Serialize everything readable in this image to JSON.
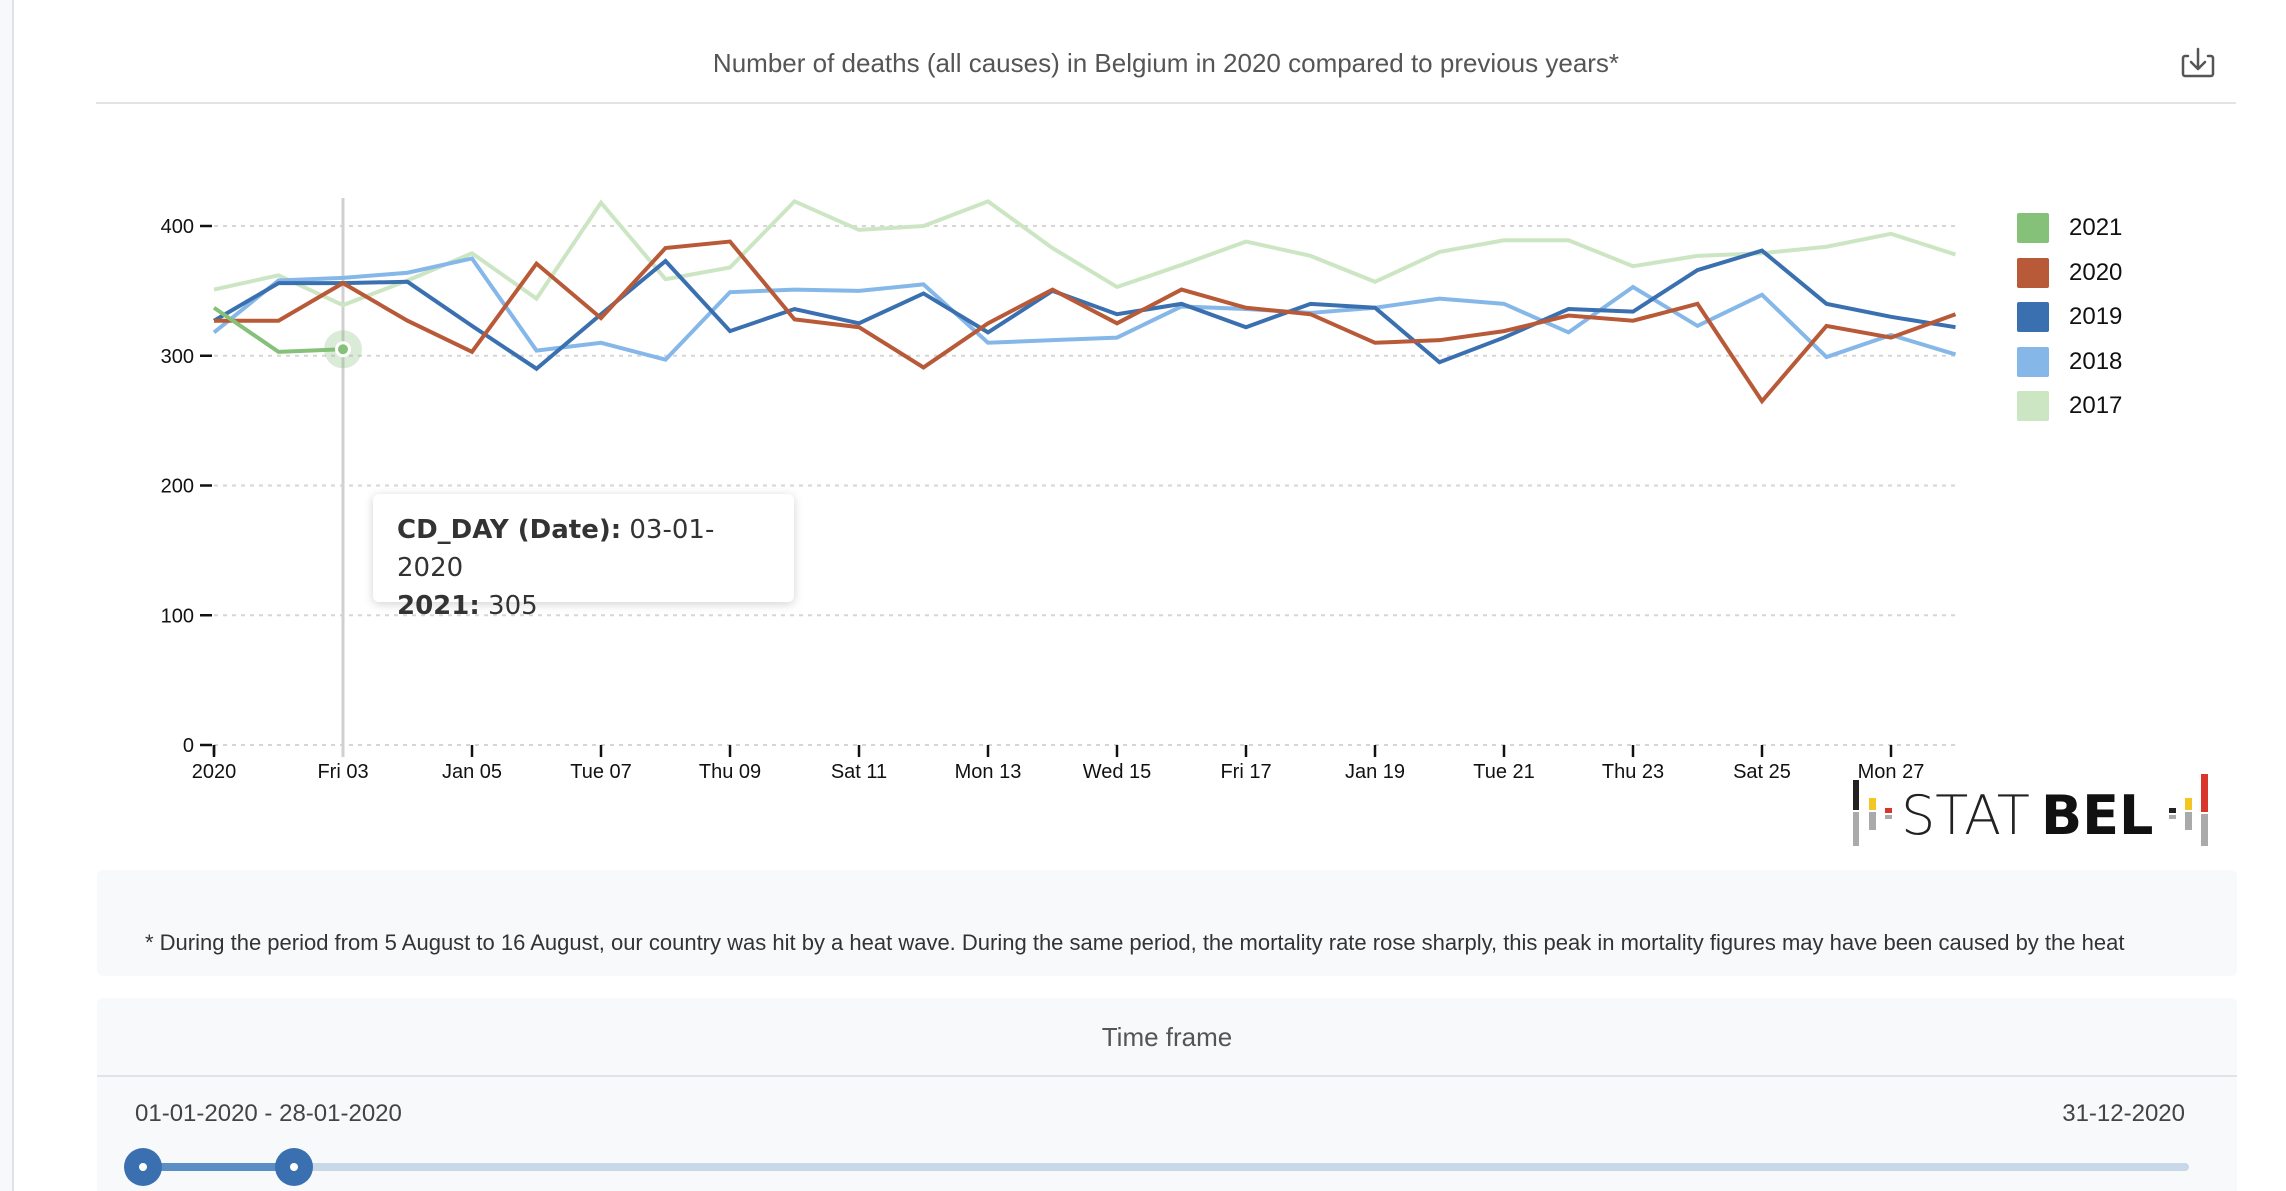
{
  "header": {
    "title": "Number of deaths (all causes) in Belgium in 2020 compared to previous years*",
    "download_icon": "download-icon"
  },
  "chart_data": {
    "type": "line",
    "title": "Number of deaths (all causes) in Belgium in 2020 compared to previous years*",
    "xlabel": "",
    "ylabel": "",
    "x": [
      "01-01",
      "02-01",
      "03-01",
      "04-01",
      "05-01",
      "06-01",
      "07-01",
      "08-01",
      "09-01",
      "10-01",
      "11-01",
      "12-01",
      "13-01",
      "14-01",
      "15-01",
      "16-01",
      "17-01",
      "18-01",
      "19-01",
      "20-01",
      "21-01",
      "22-01",
      "23-01",
      "24-01",
      "25-01",
      "26-01",
      "27-01",
      "28-01"
    ],
    "x_tick_labels": [
      {
        "index": 0,
        "label": "2020"
      },
      {
        "index": 2,
        "label": "Fri 03"
      },
      {
        "index": 4,
        "label": "Jan 05"
      },
      {
        "index": 6,
        "label": "Tue 07"
      },
      {
        "index": 8,
        "label": "Thu 09"
      },
      {
        "index": 10,
        "label": "Sat 11"
      },
      {
        "index": 12,
        "label": "Mon 13"
      },
      {
        "index": 14,
        "label": "Wed 15"
      },
      {
        "index": 16,
        "label": "Fri 17"
      },
      {
        "index": 18,
        "label": "Jan 19"
      },
      {
        "index": 20,
        "label": "Tue 21"
      },
      {
        "index": 22,
        "label": "Thu 23"
      },
      {
        "index": 24,
        "label": "Sat 25"
      },
      {
        "index": 26,
        "label": "Mon 27"
      }
    ],
    "y_ticks": [
      0,
      100,
      200,
      300,
      400
    ],
    "ylim": [
      0,
      400
    ],
    "grid": true,
    "legend_position": "right",
    "series": [
      {
        "name": "2021",
        "color": "#86c17a",
        "values": [
          337,
          303,
          305
        ]
      },
      {
        "name": "2020",
        "color": "#b85a38",
        "values": [
          327,
          327,
          356,
          327,
          303,
          371,
          329,
          383,
          388,
          328,
          322,
          291,
          325,
          351,
          325,
          351,
          337,
          332,
          310,
          312,
          319,
          331,
          327,
          340,
          265,
          323,
          314,
          332
        ]
      },
      {
        "name": "2019",
        "color": "#3a70b0",
        "values": [
          327,
          356,
          356,
          357,
          323,
          290,
          332,
          373,
          319,
          336,
          325,
          348,
          318,
          350,
          332,
          340,
          322,
          340,
          337,
          295,
          314,
          336,
          334,
          366,
          381,
          340,
          330,
          322
        ]
      },
      {
        "name": "2018",
        "color": "#85b8e8",
        "values": [
          318,
          358,
          360,
          364,
          375,
          304,
          310,
          297,
          349,
          351,
          350,
          355,
          310,
          312,
          314,
          338,
          336,
          333,
          337,
          344,
          340,
          318,
          353,
          323,
          347,
          299,
          316,
          301
        ]
      },
      {
        "name": "2017",
        "color": "#cce6c4",
        "values": [
          351,
          362,
          339,
          358,
          379,
          344,
          418,
          359,
          368,
          419,
          397,
          400,
          419,
          383,
          353,
          370,
          388,
          377,
          357,
          380,
          389,
          389,
          369,
          377,
          379,
          384,
          394,
          378
        ]
      }
    ],
    "hover": {
      "index": 2,
      "series": "2021"
    }
  },
  "tooltip": {
    "line1_key": "CD_DAY (Date):",
    "line1_value": " 03-01-2020",
    "line2_key": "2021:",
    "line2_value": " 305"
  },
  "logo": {
    "text_light": "STAT",
    "text_bold": "BEL"
  },
  "note": {
    "text": "* During the period from 5 August to 16 August, our country was hit by a heat wave. During the same period, the mortality rate rose sharply, this peak in mortality figures may have been caused by the heat"
  },
  "time_frame": {
    "title": "Time frame",
    "selected_range": "01-01-2020 - 28-01-2020",
    "end_label": "31-12-2020",
    "range_start_fraction": 0.0,
    "range_end_fraction": 0.074
  }
}
